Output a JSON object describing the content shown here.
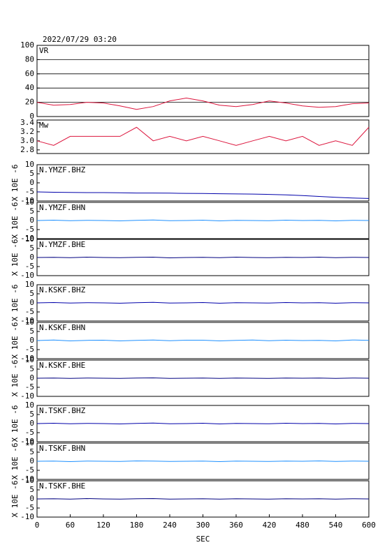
{
  "chart_data": [
    {
      "type": "line",
      "title": "2022/07/29 03:20",
      "x": [
        0,
        30,
        60,
        90,
        120,
        150,
        180,
        210,
        240,
        270,
        300,
        330,
        360,
        390,
        420,
        450,
        480,
        510,
        540,
        570,
        600
      ],
      "series": [
        {
          "name": "VR",
          "color": "#dc143c",
          "values": [
            20,
            16,
            17,
            20,
            19,
            15,
            10,
            14,
            22,
            26,
            22,
            16,
            14,
            17,
            22,
            19,
            15,
            13,
            14,
            18,
            19
          ]
        }
      ],
      "xlim": [
        0,
        600
      ],
      "ylim": [
        0,
        100
      ],
      "yticks": [
        0,
        20,
        40,
        60,
        80,
        100
      ],
      "grid": true
    },
    {
      "type": "line",
      "x": [
        0,
        30,
        60,
        90,
        120,
        150,
        180,
        210,
        240,
        270,
        300,
        330,
        360,
        390,
        420,
        450,
        480,
        510,
        540,
        570,
        600
      ],
      "series": [
        {
          "name": "Mw",
          "color": "#dc143c",
          "values": [
            3.0,
            2.9,
            3.1,
            3.1,
            3.1,
            3.1,
            3.3,
            3.0,
            3.1,
            3.0,
            3.1,
            3.0,
            2.9,
            3.0,
            3.1,
            3.0,
            3.1,
            2.9,
            3.0,
            2.9,
            3.3
          ]
        }
      ],
      "xlim": [
        0,
        600
      ],
      "ylim": [
        2.72,
        3.46
      ],
      "yticks": [
        2.8,
        {
          "value": 3,
          "label": "3.0"
        },
        3.2,
        3.4
      ],
      "grid": false
    },
    {
      "type": "line",
      "ylabel": "X 10E -6",
      "x": [
        0,
        30,
        60,
        90,
        120,
        150,
        180,
        210,
        240,
        270,
        300,
        330,
        360,
        390,
        420,
        450,
        480,
        510,
        540,
        570,
        600
      ],
      "series": [
        {
          "name": "N.YMZF.BHZ",
          "color": "#0000aa",
          "values": [
            -5,
            -5.2,
            -5.3,
            -5.4,
            -5.4,
            -5.5,
            -5.6,
            -5.6,
            -5.7,
            -5.8,
            -5.9,
            -6,
            -6.1,
            -6.2,
            -6.4,
            -6.6,
            -7,
            -7.5,
            -8,
            -8.4,
            -8.6
          ]
        }
      ],
      "xlim": [
        0,
        600
      ],
      "ylim": [
        -10,
        10
      ],
      "yticks": [
        -10,
        -5,
        0,
        5,
        10
      ],
      "grid": false
    },
    {
      "type": "line",
      "ylabel": "X 10E -6",
      "x": [
        0,
        30,
        60,
        90,
        120,
        150,
        180,
        210,
        240,
        270,
        300,
        330,
        360,
        390,
        420,
        450,
        480,
        510,
        540,
        570,
        600
      ],
      "series": [
        {
          "name": "N.YMZF.BHN",
          "color": "#1e90ff",
          "values": [
            0,
            0.2,
            -0.1,
            0.1,
            0,
            -0.2,
            0.1,
            0.3,
            -0.1,
            0,
            0.2,
            -0.2,
            0.1,
            0,
            -0.1,
            0.2,
            0,
            0.1,
            -0.2,
            0.1,
            0
          ]
        }
      ],
      "xlim": [
        0,
        600
      ],
      "ylim": [
        -10,
        10
      ],
      "yticks": [
        -10,
        -5,
        0,
        5,
        10
      ],
      "grid": false
    },
    {
      "type": "line",
      "ylabel": "X 10E -6",
      "x": [
        0,
        30,
        60,
        90,
        120,
        150,
        180,
        210,
        240,
        270,
        300,
        330,
        360,
        390,
        420,
        450,
        480,
        510,
        540,
        570,
        600
      ],
      "series": [
        {
          "name": "N.YMZF.BHE",
          "color": "#000080",
          "values": [
            0,
            0.1,
            -0.1,
            0.2,
            0,
            -0.1,
            0.1,
            0.2,
            -0.2,
            0,
            0.1,
            -0.1,
            0.2,
            0,
            -0.1,
            0.1,
            0,
            0.2,
            -0.1,
            0.1,
            0
          ]
        }
      ],
      "xlim": [
        0,
        600
      ],
      "ylim": [
        -10,
        10
      ],
      "yticks": [
        -10,
        -5,
        0,
        5,
        10
      ],
      "grid": false
    },
    {
      "type": "line",
      "ylabel": "X 10E -6",
      "x": [
        0,
        30,
        60,
        90,
        120,
        150,
        180,
        210,
        240,
        270,
        300,
        330,
        360,
        390,
        420,
        450,
        480,
        510,
        540,
        570,
        600
      ],
      "series": [
        {
          "name": "N.KSKF.BHZ",
          "color": "#0000aa",
          "values": [
            0,
            0.2,
            -0.1,
            0.1,
            0,
            -0.2,
            0.1,
            0.3,
            -0.1,
            0,
            0.2,
            -0.2,
            0.1,
            0,
            -0.1,
            0.2,
            0,
            0.1,
            -0.2,
            0.1,
            0
          ]
        }
      ],
      "xlim": [
        0,
        600
      ],
      "ylim": [
        -10,
        10
      ],
      "yticks": [
        -10,
        -5,
        0,
        5,
        10
      ],
      "grid": false
    },
    {
      "type": "line",
      "ylabel": "X 10E -6",
      "x": [
        0,
        30,
        60,
        90,
        120,
        150,
        180,
        210,
        240,
        270,
        300,
        330,
        360,
        390,
        420,
        450,
        480,
        510,
        540,
        570,
        600
      ],
      "series": [
        {
          "name": "N.KSKF.BHN",
          "color": "#1e90ff",
          "values": [
            0,
            0.3,
            -0.2,
            0.1,
            0.2,
            -0.2,
            0.1,
            0.3,
            -0.1,
            0.2,
            0.2,
            -0.2,
            0.1,
            0.3,
            -0.1,
            0.2,
            0,
            0.1,
            -0.2,
            0.3,
            0.1
          ]
        }
      ],
      "xlim": [
        0,
        600
      ],
      "ylim": [
        -10,
        10
      ],
      "yticks": [
        -10,
        -5,
        0,
        5,
        10
      ],
      "grid": false
    },
    {
      "type": "line",
      "ylabel": "X 10E -6",
      "x": [
        0,
        30,
        60,
        90,
        120,
        150,
        180,
        210,
        240,
        270,
        300,
        330,
        360,
        390,
        420,
        450,
        480,
        510,
        540,
        570,
        600
      ],
      "series": [
        {
          "name": "N.KSKF.BHE",
          "color": "#000080",
          "values": [
            0,
            0.1,
            -0.1,
            0.1,
            0,
            -0.1,
            0.1,
            0.2,
            -0.1,
            0,
            0.1,
            -0.1,
            0.1,
            0,
            -0.1,
            0.1,
            0,
            0.1,
            -0.1,
            0.1,
            0
          ]
        }
      ],
      "xlim": [
        0,
        600
      ],
      "ylim": [
        -10,
        10
      ],
      "yticks": [
        -10,
        -5,
        0,
        5,
        10
      ],
      "grid": false
    },
    {
      "type": "line",
      "ylabel": "X 10E -6",
      "x": [
        0,
        30,
        60,
        90,
        120,
        150,
        180,
        210,
        240,
        270,
        300,
        330,
        360,
        390,
        420,
        450,
        480,
        510,
        540,
        570,
        600
      ],
      "series": [
        {
          "name": "N.TSKF.BHZ",
          "color": "#0000aa",
          "values": [
            0,
            0.2,
            -0.1,
            0.1,
            0,
            -0.2,
            0.1,
            0.3,
            -0.1,
            0,
            0.2,
            -0.2,
            0.1,
            0,
            -0.1,
            0.2,
            0,
            0.1,
            -0.2,
            0.1,
            0
          ]
        }
      ],
      "xlim": [
        0,
        600
      ],
      "ylim": [
        -10,
        10
      ],
      "yticks": [
        -10,
        -5,
        0,
        5,
        10
      ],
      "grid": false
    },
    {
      "type": "line",
      "ylabel": "X 10E -6",
      "x": [
        0,
        30,
        60,
        90,
        120,
        150,
        180,
        210,
        240,
        270,
        300,
        330,
        360,
        390,
        420,
        450,
        480,
        510,
        540,
        570,
        600
      ],
      "series": [
        {
          "name": "N.TSKF.BHN",
          "color": "#1e90ff",
          "values": [
            0,
            0.1,
            -0.2,
            0.1,
            0,
            -0.1,
            0.2,
            0.1,
            -0.1,
            0,
            0.1,
            -0.2,
            0.1,
            0,
            -0.1,
            0.1,
            0,
            0.2,
            -0.1,
            0.1,
            0
          ]
        }
      ],
      "xlim": [
        0,
        600
      ],
      "ylim": [
        -10,
        10
      ],
      "yticks": [
        -10,
        -5,
        0,
        5,
        10
      ],
      "grid": false
    },
    {
      "type": "line",
      "ylabel": "X 10E -6",
      "xlabel": "SEC",
      "x": [
        0,
        30,
        60,
        90,
        120,
        150,
        180,
        210,
        240,
        270,
        300,
        330,
        360,
        390,
        420,
        450,
        480,
        510,
        540,
        570,
        600
      ],
      "series": [
        {
          "name": "N.TSKF.BHE",
          "color": "#000080",
          "values": [
            0,
            0.1,
            -0.1,
            0.2,
            0,
            -0.1,
            0.1,
            0.2,
            -0.1,
            0,
            0.1,
            -0.1,
            0.1,
            0,
            -0.1,
            0.1,
            0,
            0.1,
            -0.1,
            0.1,
            0
          ]
        }
      ],
      "xlim": [
        0,
        600
      ],
      "ylim": [
        -10,
        10
      ],
      "yticks": [
        -10,
        -5,
        0,
        5,
        10
      ],
      "xticks": [
        0,
        60,
        120,
        180,
        240,
        300,
        360,
        420,
        480,
        540,
        600
      ],
      "grid": false
    }
  ]
}
